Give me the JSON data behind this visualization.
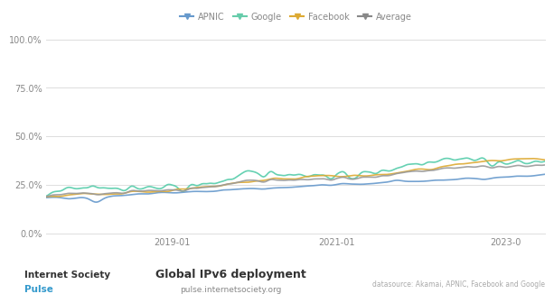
{
  "title": "Global IPv6 deployment",
  "subtitle": "pulse.internetsociety.org",
  "datasource": "datasource: Akamai, APNIC, Facebook and Google",
  "legend_labels": [
    "APNIC",
    "Google",
    "Facebook",
    "Average"
  ],
  "legend_colors": [
    "#6699cc",
    "#66ccaa",
    "#ddaa33",
    "#888888"
  ],
  "line_colors": {
    "APNIC": "#6699cc",
    "Google": "#55ccaa",
    "Facebook": "#ddaa33",
    "Average": "#999999"
  },
  "x_ticks": [
    "2019-01",
    "2021-01",
    "2023-0"
  ],
  "y_ticks": [
    "0.0%",
    "25.0%",
    "50.0%",
    "75.0%",
    "100.0%"
  ],
  "ylim": [
    0,
    100
  ],
  "background_color": "#ffffff",
  "grid_color": "#dddddd",
  "title_fontsize": 10,
  "subtitle_fontsize": 7,
  "n_points": 300
}
